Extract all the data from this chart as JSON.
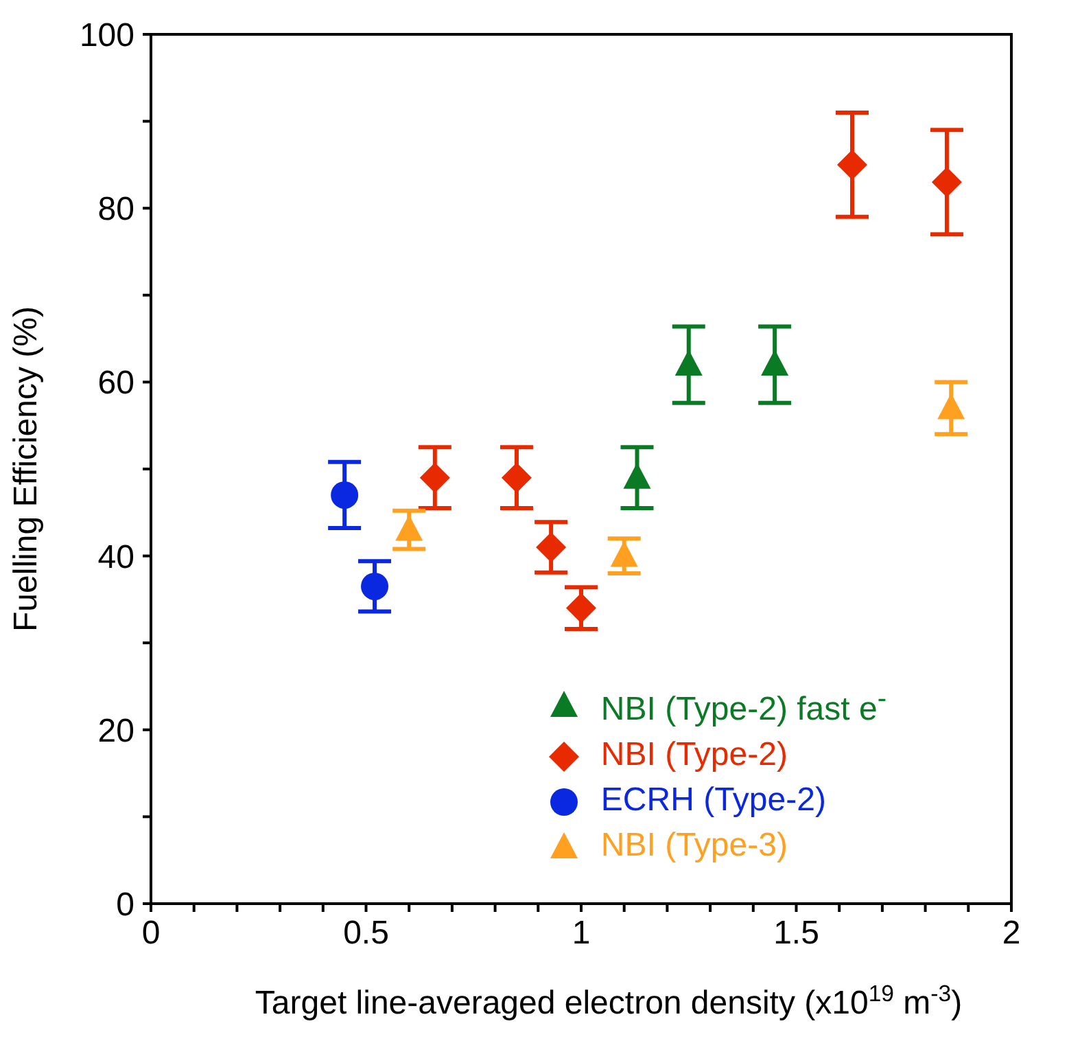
{
  "chart_data": {
    "type": "scatter",
    "xlabel": "Target line-averaged electron density (x10$^{19}$ m$^{-3}$)",
    "ylabel": "Fuelling Efficiency (%)",
    "xlim": [
      0,
      2
    ],
    "ylim": [
      0,
      100
    ],
    "xticks": [
      0,
      {
        "value": 0.1,
        "label": null
      },
      {
        "value": 0.2,
        "label": null
      },
      {
        "value": 0.3,
        "label": null
      },
      {
        "value": 0.4,
        "label": null
      },
      0.5,
      {
        "value": 0.6,
        "label": null
      },
      {
        "value": 0.7,
        "label": null
      },
      {
        "value": 0.8,
        "label": null
      },
      {
        "value": 0.9,
        "label": null
      },
      1,
      {
        "value": 1.1,
        "label": null
      },
      {
        "value": 1.2,
        "label": null
      },
      {
        "value": 1.3,
        "label": null
      },
      {
        "value": 1.4,
        "label": null
      },
      1.5,
      {
        "value": 1.6,
        "label": null
      },
      {
        "value": 1.7,
        "label": null
      },
      {
        "value": 1.8,
        "label": null
      },
      {
        "value": 1.9,
        "label": null
      },
      2
    ],
    "yticks": [
      0,
      {
        "value": 10,
        "label": null
      },
      20,
      {
        "value": 30,
        "label": null
      },
      40,
      {
        "value": 50,
        "label": null
      },
      60,
      {
        "value": 70,
        "label": null
      },
      80,
      {
        "value": 90,
        "label": null
      },
      100
    ],
    "grid": false,
    "legend": "bottom right",
    "series": [
      {
        "name": "NBI (Type-2) fast e$^{-}$",
        "color": "#0a7a25",
        "marker": "triangle",
        "x": [
          1.13,
          1.25,
          1.45
        ],
        "values": [
          49,
          62,
          62
        ],
        "errors": [
          3.5,
          4.4,
          4.4
        ]
      },
      {
        "name": "NBI (Type-2)",
        "color": "#e82a00",
        "marker": "diamond",
        "x": [
          0.66,
          0.85,
          0.93,
          1.0,
          1.63,
          1.85
        ],
        "values": [
          49,
          49,
          41,
          34,
          85,
          83
        ],
        "errors": [
          3.5,
          3.5,
          2.9,
          2.4,
          6,
          6
        ]
      },
      {
        "name": "ECRH (Type-2)",
        "color": "#0a28e0",
        "marker": "circle",
        "x": [
          0.45,
          0.52
        ],
        "values": [
          47,
          36.5
        ],
        "errors": [
          3.8,
          2.9
        ]
      },
      {
        "name": "NBI (Type-3)",
        "color": "#ffa020",
        "marker": "triangle",
        "x": [
          0.6,
          1.1,
          1.86
        ],
        "values": [
          43,
          40,
          57
        ],
        "errors": [
          2.2,
          2,
          3
        ]
      }
    ]
  }
}
